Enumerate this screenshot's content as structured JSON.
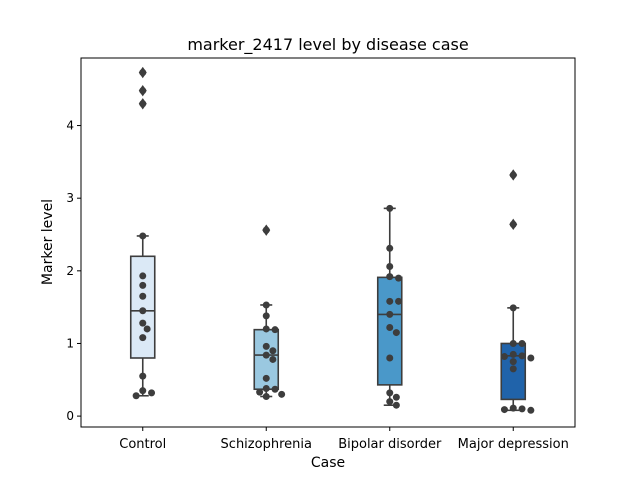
{
  "chart_data": {
    "type": "box",
    "title": "marker_2417 level by disease case",
    "xlabel": "Case",
    "ylabel": "Marker level",
    "ylim": [
      -0.15,
      4.93
    ],
    "yticks": [
      0,
      1,
      2,
      3,
      4
    ],
    "grid": false,
    "categories": [
      "Control",
      "Schizophrenia",
      "Bipolar disorder",
      "Major depression"
    ],
    "colors": [
      "#dbe9f6",
      "#9ac8e0",
      "#4a98c9",
      "#2063aa"
    ],
    "boxes": [
      {
        "q1": 0.8,
        "median": 1.45,
        "q3": 2.2,
        "whisker_low": 0.28,
        "whisker_high": 2.48,
        "outliers": [
          4.3,
          4.48,
          4.73
        ]
      },
      {
        "q1": 0.37,
        "median": 0.84,
        "q3": 1.19,
        "whisker_low": 0.27,
        "whisker_high": 1.53,
        "outliers": [
          2.56
        ]
      },
      {
        "q1": 0.43,
        "median": 1.4,
        "q3": 1.91,
        "whisker_low": 0.15,
        "whisker_high": 2.86,
        "outliers": []
      },
      {
        "q1": 0.23,
        "median": 0.83,
        "q3": 1.0,
        "whisker_low": 0.08,
        "whisker_high": 1.49,
        "outliers": [
          2.64,
          3.32
        ]
      }
    ],
    "points": [
      [
        0.32,
        0.28,
        0.35,
        0.55,
        1.08,
        1.2,
        1.28,
        1.45,
        1.65,
        1.8,
        1.93,
        2.48,
        4.3,
        4.48,
        4.73
      ],
      [
        0.27,
        0.3,
        0.33,
        0.37,
        0.38,
        0.52,
        0.78,
        0.84,
        0.9,
        0.96,
        1.19,
        1.2,
        1.38,
        1.53,
        2.56
      ],
      [
        0.15,
        0.2,
        0.26,
        0.32,
        0.8,
        1.15,
        1.22,
        1.4,
        1.58,
        1.58,
        1.9,
        1.92,
        2.06,
        2.31,
        2.86
      ],
      [
        0.08,
        0.09,
        0.1,
        0.11,
        0.65,
        0.75,
        0.8,
        0.82,
        0.83,
        0.85,
        1.0,
        1.0,
        1.49,
        2.64,
        3.32
      ]
    ]
  }
}
